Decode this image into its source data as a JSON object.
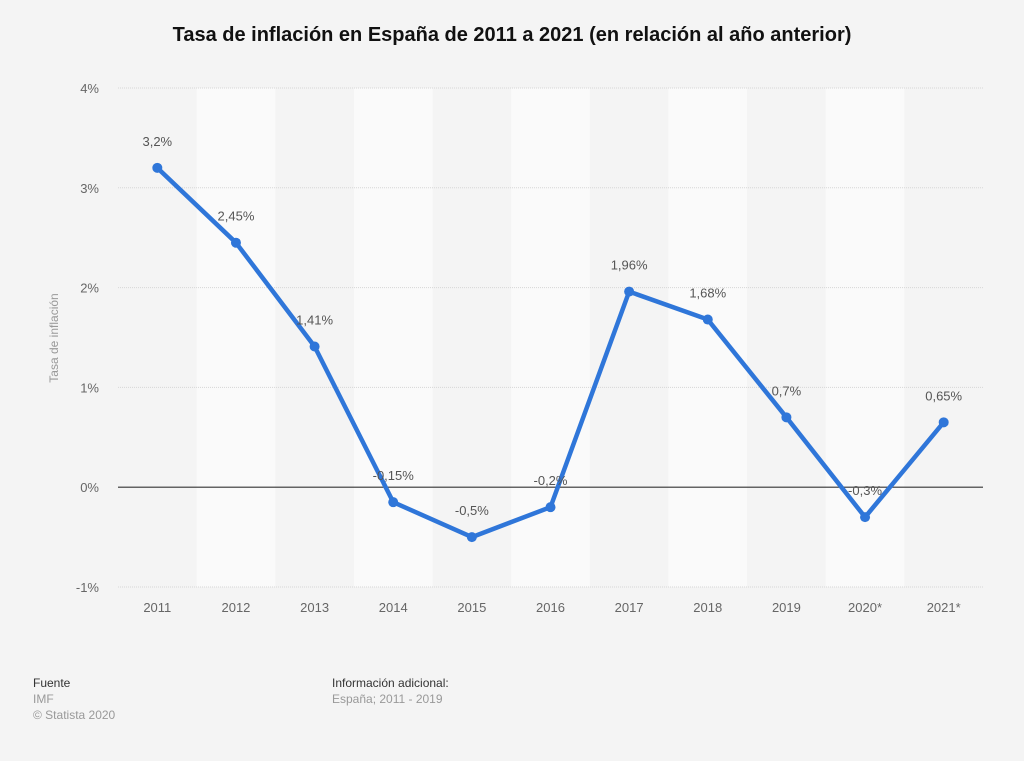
{
  "chart_data": {
    "type": "line",
    "title": "Tasa de inflación en España de 2011 a 2021 (en relación al año anterior)",
    "xlabel": "",
    "ylabel": "Tasa de inflación",
    "categories": [
      "2011",
      "2012",
      "2013",
      "2014",
      "2015",
      "2016",
      "2017",
      "2018",
      "2019",
      "2020*",
      "2021*"
    ],
    "series": [
      {
        "name": "Tasa de inflación",
        "values": [
          3.2,
          2.45,
          1.41,
          -0.15,
          -0.5,
          -0.2,
          1.96,
          1.68,
          0.7,
          -0.3,
          0.65
        ],
        "labels": [
          "3,2%",
          "2,45%",
          "1,41%",
          "-0,15%",
          "-0,5%",
          "-0,2%",
          "1,96%",
          "1,68%",
          "0,7%",
          "-0,3%",
          "0,65%"
        ],
        "color": "#2f76d9"
      }
    ],
    "ylim": [
      -1,
      4
    ],
    "yticks": [
      {
        "value": 4,
        "label": "4%"
      },
      {
        "value": 3,
        "label": "3%"
      },
      {
        "value": 2,
        "label": "2%"
      },
      {
        "value": 1,
        "label": "1%"
      },
      {
        "value": 0,
        "label": "0%"
      },
      {
        "value": -1,
        "label": "-1%"
      }
    ],
    "grid": true,
    "legend": "none"
  },
  "footer": {
    "source_heading": "Fuente",
    "source_value": "IMF",
    "copyright": "© Statista 2020",
    "info_heading": "Información adicional:",
    "info_value": "España; 2011 - 2019"
  }
}
